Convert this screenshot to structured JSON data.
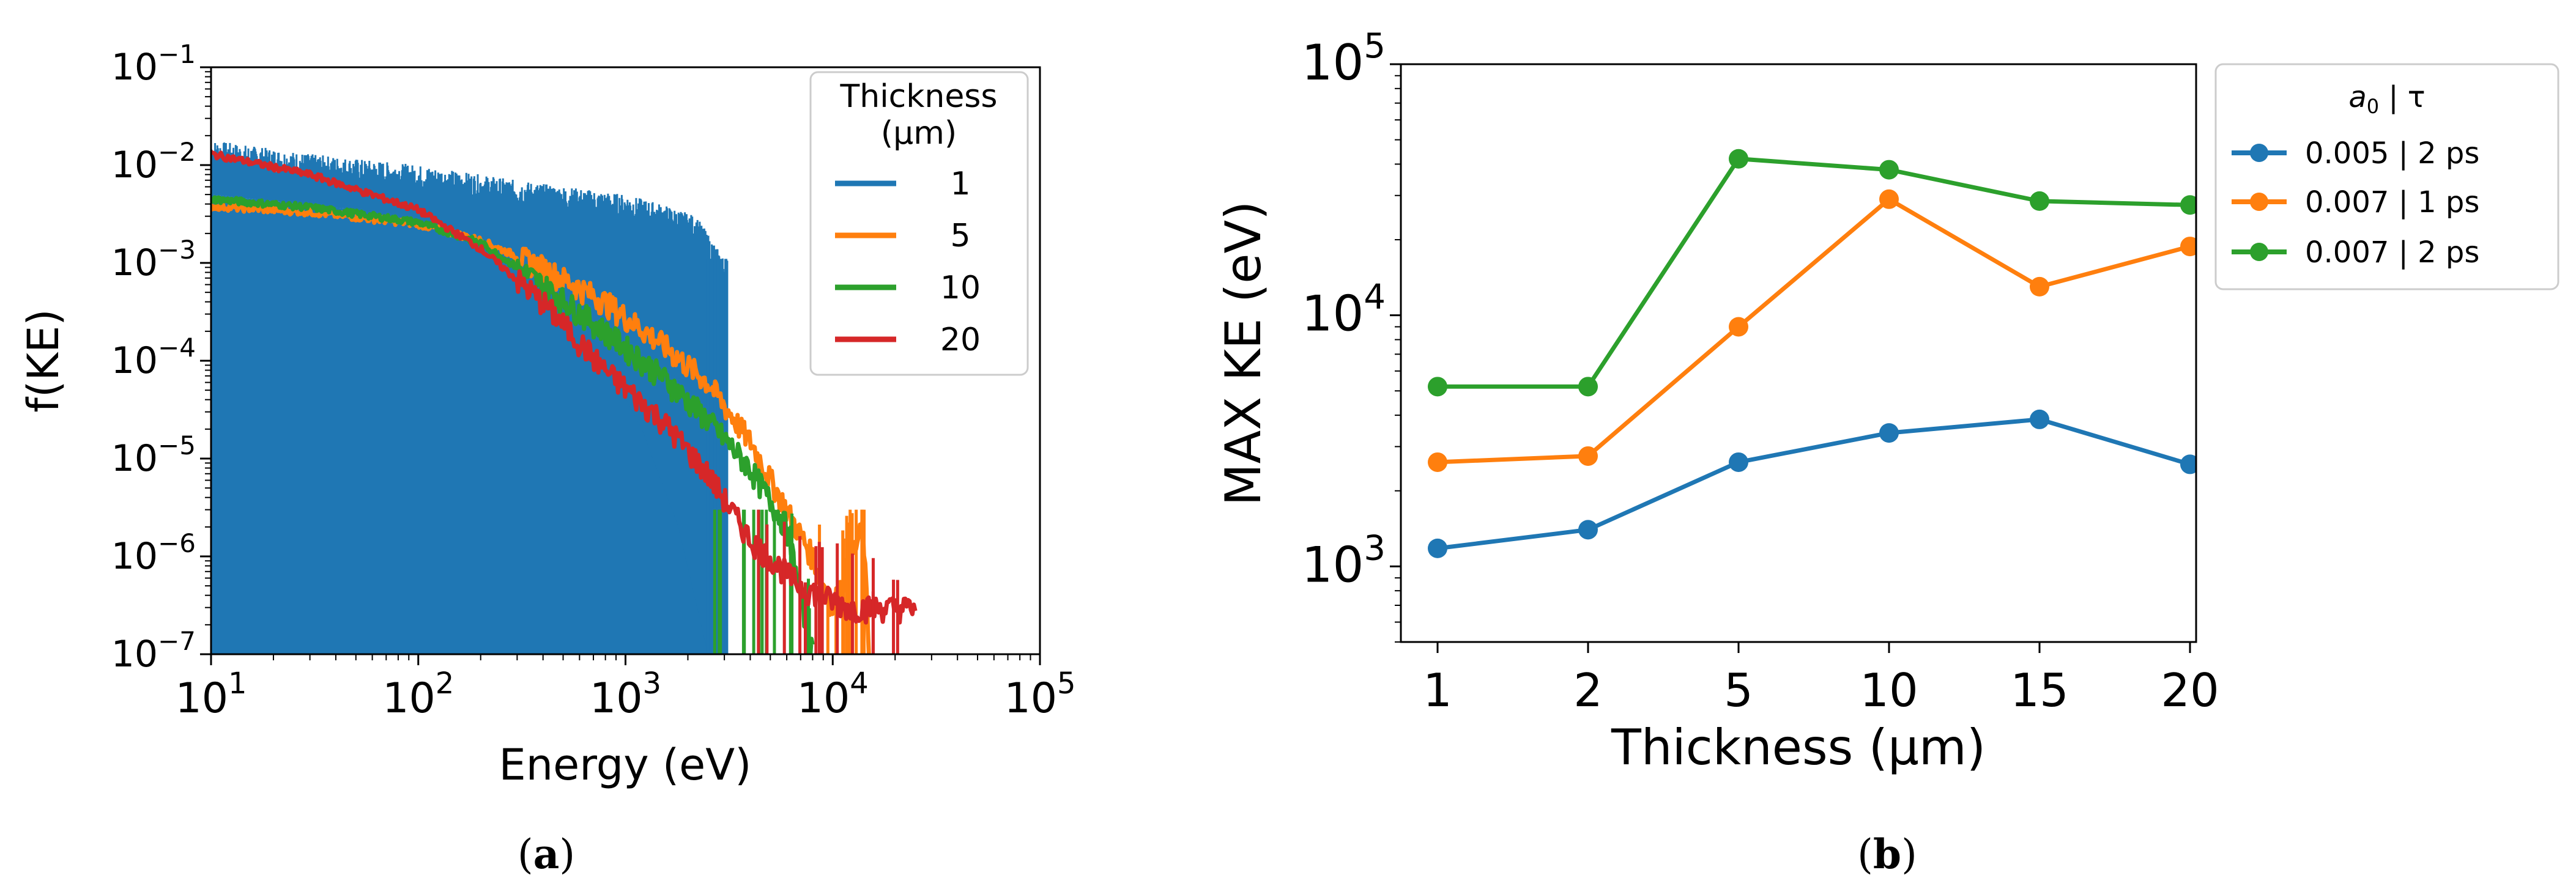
{
  "chart_data": [
    {
      "type": "line",
      "panel_caption": "(a)",
      "caption": {
        "pre": "(",
        "letter": "a",
        "post": ")"
      },
      "xlabel": "Energy (eV)",
      "ylabel": "f(KE)",
      "xscale": "log",
      "yscale": "log",
      "xlim": [
        10,
        100000
      ],
      "ylim": [
        1e-07,
        0.1
      ],
      "x_ticks": [
        {
          "base": "10",
          "exp": "1"
        },
        {
          "base": "10",
          "exp": "2"
        },
        {
          "base": "10",
          "exp": "3"
        },
        {
          "base": "10",
          "exp": "4"
        },
        {
          "base": "10",
          "exp": "5"
        }
      ],
      "y_ticks": [
        {
          "base": "10",
          "exp": "−7"
        },
        {
          "base": "10",
          "exp": "−6"
        },
        {
          "base": "10",
          "exp": "−5"
        },
        {
          "base": "10",
          "exp": "−4"
        },
        {
          "base": "10",
          "exp": "−3"
        },
        {
          "base": "10",
          "exp": "−2"
        },
        {
          "base": "10",
          "exp": "−1"
        }
      ],
      "legend": {
        "title_line1": "Thickness",
        "title_line2": "(µm)",
        "placement": "top-right"
      },
      "series": [
        {
          "name": "1",
          "color": "#1f77b4",
          "noisy": true,
          "envelope_upper": [
            [
              10,
              0.018
            ],
            [
              30,
              0.013
            ],
            [
              100,
              0.01
            ],
            [
              300,
              0.007
            ],
            [
              1000,
              0.005
            ],
            [
              1500,
              0.004
            ],
            [
              2200,
              0.003
            ],
            [
              3000,
              0.0011
            ],
            [
              3100,
              0.0011
            ],
            [
              3100,
              1e-07
            ]
          ],
          "envelope_lower": [
            [
              10,
              0.005
            ],
            [
              50,
              0.0035
            ],
            [
              100,
              0.0025
            ],
            [
              200,
              0.0015
            ],
            [
              400,
              0.0005
            ],
            [
              800,
              0.0001
            ],
            [
              1200,
              2e-05
            ],
            [
              1800,
              2e-06
            ],
            [
              2500,
              1e-07
            ]
          ]
        },
        {
          "name": "5",
          "color": "#ff7f0e",
          "noisy": false,
          "points": [
            [
              10,
              0.0038
            ],
            [
              30,
              0.0033
            ],
            [
              100,
              0.0025
            ],
            [
              200,
              0.0017
            ],
            [
              400,
              0.0009
            ],
            [
              800,
              0.0004
            ],
            [
              1500,
              0.00015
            ],
            [
              2500,
              6e-05
            ],
            [
              4000,
              1.5e-05
            ],
            [
              6000,
              3e-06
            ],
            [
              8000,
              1e-06
            ],
            [
              10000,
              3e-07
            ],
            [
              14000,
              2e-06
            ],
            [
              15000,
              1e-07
            ]
          ]
        },
        {
          "name": "10",
          "color": "#2ca02c",
          "noisy": false,
          "points": [
            [
              10,
              0.0045
            ],
            [
              30,
              0.0037
            ],
            [
              100,
              0.0026
            ],
            [
              200,
              0.0016
            ],
            [
              400,
              0.0006
            ],
            [
              800,
              0.0002
            ],
            [
              1500,
              7e-05
            ],
            [
              2500,
              2.5e-05
            ],
            [
              4000,
              8e-06
            ],
            [
              6000,
              2e-06
            ],
            [
              8000,
              1e-07
            ]
          ]
        },
        {
          "name": "20",
          "color": "#d62728",
          "noisy": false,
          "points": [
            [
              10,
              0.013
            ],
            [
              30,
              0.008
            ],
            [
              100,
              0.0035
            ],
            [
              200,
              0.0014
            ],
            [
              400,
              0.0004
            ],
            [
              800,
              8e-05
            ],
            [
              1500,
              2.5e-05
            ],
            [
              2500,
              7e-06
            ],
            [
              4000,
              1.5e-06
            ],
            [
              7000,
              5e-07
            ],
            [
              12000,
              3e-07
            ],
            [
              25000,
              3e-07
            ]
          ]
        }
      ]
    },
    {
      "type": "line",
      "panel_caption": "(b)",
      "caption": {
        "pre": "(",
        "letter": "b",
        "post": ")"
      },
      "xlabel": "Thickness (µm)",
      "ylabel": "MAX KE (eV)",
      "yscale": "log",
      "ylim": [
        500,
        100000
      ],
      "categories": [
        "1",
        "2",
        "5",
        "10",
        "15",
        "20"
      ],
      "y_ticks": [
        {
          "base": "10",
          "exp": "3"
        },
        {
          "base": "10",
          "exp": "4"
        },
        {
          "base": "10",
          "exp": "5"
        }
      ],
      "legend": {
        "title_main": "a",
        "title_sub": "0",
        "title_rest": " | τ",
        "placement": "outside-right"
      },
      "series": [
        {
          "name": "0.005 | 2 ps",
          "color": "#1f77b4",
          "values": [
            1180,
            1400,
            2600,
            3400,
            3850,
            2550
          ]
        },
        {
          "name": "0.007 | 1 ps",
          "color": "#ff7f0e",
          "values": [
            2600,
            2750,
            9000,
            29000,
            13000,
            18800
          ]
        },
        {
          "name": "0.007 | 2 ps",
          "color": "#2ca02c",
          "values": [
            5200,
            5200,
            42000,
            38000,
            28500,
            27500
          ]
        }
      ]
    }
  ]
}
